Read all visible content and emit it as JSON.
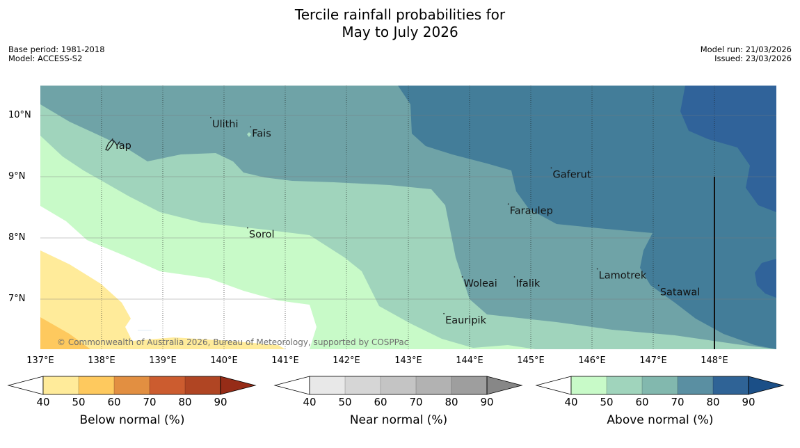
{
  "title_line1": "Tercile rainfall probabilities for",
  "title_line2": "May to July 2026",
  "meta_left": {
    "base_period": "Base period: 1981-2018",
    "model": "Model: ACCESS-S2"
  },
  "meta_right": {
    "model_run": "Model run: 21/03/2026",
    "issued": "Issued: 23/03/2026"
  },
  "copyright": "© Commonwealth of Australia 2026, Bureau of Meteorology, supported by COSPPac",
  "lat_labels": [
    "10°N",
    "9°N",
    "8°N",
    "7°N"
  ],
  "lon_labels": [
    "137°E",
    "138°E",
    "139°E",
    "140°E",
    "141°E",
    "142°E",
    "143°E",
    "144°E",
    "145°E",
    "146°E",
    "147°E",
    "148°E"
  ],
  "places": [
    {
      "name": "Ulithi",
      "lon": 139.8,
      "lat": 9.85
    },
    {
      "name": "Fais",
      "lon": 140.45,
      "lat": 9.7
    },
    {
      "name": "Yap",
      "lon": 138.2,
      "lat": 9.5
    },
    {
      "name": "Gaferut",
      "lon": 145.35,
      "lat": 9.03
    },
    {
      "name": "Faraulep",
      "lon": 144.65,
      "lat": 8.44
    },
    {
      "name": "Sorol",
      "lon": 140.4,
      "lat": 8.05
    },
    {
      "name": "Lamotrek",
      "lon": 146.1,
      "lat": 7.38
    },
    {
      "name": "Woleai",
      "lon": 143.9,
      "lat": 7.25
    },
    {
      "name": "Ifalik",
      "lon": 144.75,
      "lat": 7.25
    },
    {
      "name": "Satawal",
      "lon": 147.1,
      "lat": 7.11
    },
    {
      "name": "Eauripik",
      "lon": 143.6,
      "lat": 6.65
    }
  ],
  "colorbars": [
    {
      "label": "Below normal (%)",
      "ticks": [
        "40",
        "50",
        "60",
        "70",
        "80",
        "90"
      ],
      "colors": [
        "#ffffff",
        "#ffeb9a",
        "#fec95e",
        "#e28f41",
        "#cc5c2f",
        "#b04523",
        "#962c17"
      ]
    },
    {
      "label": "Near normal (%)",
      "ticks": [
        "40",
        "50",
        "60",
        "70",
        "80",
        "90"
      ],
      "colors": [
        "#ffffff",
        "#e8e8e8",
        "#d6d6d6",
        "#c4c4c4",
        "#b2b2b2",
        "#9e9e9e",
        "#878787"
      ]
    },
    {
      "label": "Above normal (%)",
      "ticks": [
        "40",
        "50",
        "60",
        "70",
        "80",
        "90"
      ],
      "colors": [
        "#ffffff",
        "#c8fac8",
        "#a0d4bc",
        "#82b8ae",
        "#5a8fa2",
        "#2f6396",
        "#1b4f87"
      ]
    }
  ],
  "zone_colors": {
    "c1": "#c8fac8",
    "c2": "#a0d4bc",
    "c3": "#6fa3a7",
    "c4": "#437d99",
    "c5": "#30639a",
    "b1": "#ffeb9a",
    "b2": "#fec95e"
  }
}
